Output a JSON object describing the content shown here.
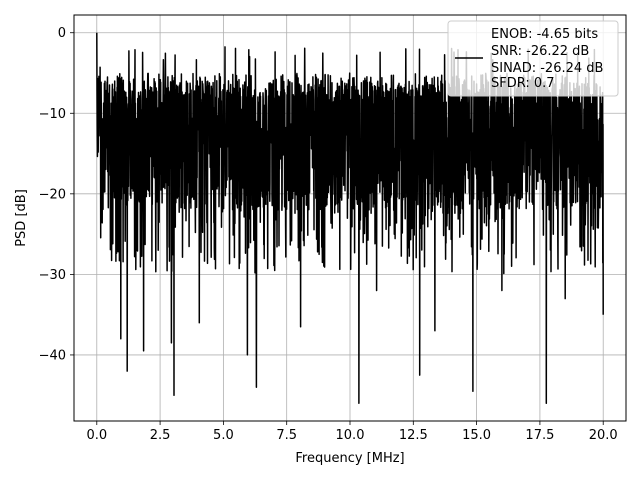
{
  "chart_data": {
    "type": "line",
    "title": "",
    "xlabel": "Frequency [MHz]",
    "ylabel": "PSD [dB]",
    "xlim": [
      -0.9,
      20.9
    ],
    "ylim": [
      -48.2,
      2.2
    ],
    "xticks": [
      0.0,
      2.5,
      5.0,
      7.5,
      10.0,
      12.5,
      15.0,
      17.5,
      20.0
    ],
    "xtick_labels": [
      "0.0",
      "2.5",
      "5.0",
      "7.5",
      "10.0",
      "12.5",
      "15.0",
      "17.5",
      "20.0"
    ],
    "yticks": [
      0,
      -10,
      -20,
      -30,
      -40
    ],
    "ytick_labels": [
      "0",
      "−10",
      "−20",
      "−30",
      "−40"
    ],
    "grid": true,
    "line_color": "#000000",
    "legend_placement": "top-right",
    "series": [
      {
        "name": "ENOB: -4.65 bits",
        "description_visible": "dense noise PSD, upper envelope near -6 to -3 dB, typical lower band near -22 dB, deep nulls down to about -46 dB",
        "x_range": [
          0.0,
          20.0
        ],
        "y_start_peak": 0.0,
        "upper_envelope_db": -5.0,
        "typical_floor_db": -22.0,
        "deep_nulls": [
          {
            "x": 0.95,
            "y": -38.0
          },
          {
            "x": 1.2,
            "y": -42.0
          },
          {
            "x": 1.85,
            "y": -39.5
          },
          {
            "x": 2.95,
            "y": -38.5
          },
          {
            "x": 3.05,
            "y": -45.0
          },
          {
            "x": 4.05,
            "y": -36.0
          },
          {
            "x": 5.95,
            "y": -40.0
          },
          {
            "x": 6.3,
            "y": -44.0
          },
          {
            "x": 8.05,
            "y": -36.5
          },
          {
            "x": 10.35,
            "y": -46.0
          },
          {
            "x": 11.05,
            "y": -32.0
          },
          {
            "x": 12.75,
            "y": -42.5
          },
          {
            "x": 13.35,
            "y": -37.0
          },
          {
            "x": 14.85,
            "y": -44.5
          },
          {
            "x": 16.0,
            "y": -32.0
          },
          {
            "x": 17.75,
            "y": -46.0
          },
          {
            "x": 18.5,
            "y": -33.0
          },
          {
            "x": 20.0,
            "y": -35.0
          }
        ]
      }
    ],
    "legend_lines": [
      "ENOB: -4.65 bits",
      "SNR: -26.22 dB",
      "SINAD: -26.24 dB",
      "SFDR: 0.7"
    ]
  }
}
